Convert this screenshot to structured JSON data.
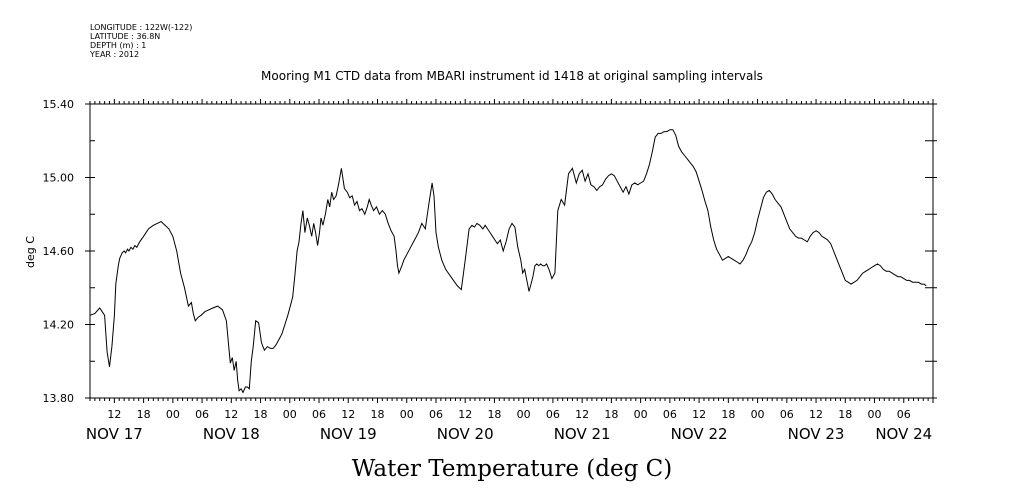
{
  "metadata": [
    "LONGITUDE : 122W(-122)",
    "LATITUDE : 36.8N",
    "DEPTH (m) : 1",
    "YEAR : 2012"
  ],
  "chart_data": {
    "type": "line",
    "title": "Mooring M1 CTD data from MBARI instrument id 1418 at original sampling intervals",
    "xlabel": "Water Temperature (deg C)",
    "ylabel": "deg C",
    "ylim": [
      13.8,
      15.4
    ],
    "yticks": [
      "13.80",
      "14.20",
      "14.60",
      "15.00",
      "15.40"
    ],
    "xlim_hours": [
      7,
      180
    ],
    "hour_ticks": [
      {
        "h": 12,
        "label": "12"
      },
      {
        "h": 18,
        "label": "18"
      },
      {
        "h": 24,
        "label": "00"
      },
      {
        "h": 30,
        "label": "06"
      },
      {
        "h": 36,
        "label": "12"
      },
      {
        "h": 42,
        "label": "18"
      },
      {
        "h": 48,
        "label": "00"
      },
      {
        "h": 54,
        "label": "06"
      },
      {
        "h": 60,
        "label": "12"
      },
      {
        "h": 66,
        "label": "18"
      },
      {
        "h": 72,
        "label": "00"
      },
      {
        "h": 78,
        "label": "06"
      },
      {
        "h": 84,
        "label": "12"
      },
      {
        "h": 90,
        "label": "18"
      },
      {
        "h": 96,
        "label": "00"
      },
      {
        "h": 102,
        "label": "06"
      },
      {
        "h": 108,
        "label": "12"
      },
      {
        "h": 114,
        "label": "18"
      },
      {
        "h": 120,
        "label": "00"
      },
      {
        "h": 126,
        "label": "06"
      },
      {
        "h": 132,
        "label": "12"
      },
      {
        "h": 138,
        "label": "18"
      },
      {
        "h": 144,
        "label": "00"
      },
      {
        "h": 150,
        "label": "06"
      },
      {
        "h": 156,
        "label": "12"
      },
      {
        "h": 162,
        "label": "18"
      },
      {
        "h": 168,
        "label": "00"
      },
      {
        "h": 174,
        "label": "06"
      }
    ],
    "day_labels": [
      {
        "h": 12,
        "label": "NOV 17"
      },
      {
        "h": 36,
        "label": "NOV 18"
      },
      {
        "h": 60,
        "label": "NOV 19"
      },
      {
        "h": 84,
        "label": "NOV 20"
      },
      {
        "h": 108,
        "label": "NOV 21"
      },
      {
        "h": 132,
        "label": "NOV 22"
      },
      {
        "h": 156,
        "label": "NOV 23"
      },
      {
        "h": 174,
        "label": "NOV 24"
      }
    ],
    "series": [
      {
        "color": "#000000",
        "hours": [
          7.0,
          8.0,
          9.0,
          10.0,
          10.5,
          11.0,
          11.5,
          12.0,
          12.3,
          12.8,
          13.1,
          13.6,
          14.0,
          14.3,
          14.7,
          15.0,
          15.4,
          15.8,
          16.2,
          16.6,
          17.2,
          18.0,
          19.0,
          20.0,
          20.8,
          21.6,
          22.4,
          23.2,
          24.0,
          24.8,
          25.6,
          26.4,
          27.2,
          27.8,
          28.2,
          28.6,
          29.2,
          29.8,
          30.6,
          31.4,
          32.2,
          33.2,
          34.2,
          35.0,
          35.4,
          35.8,
          36.2,
          36.6,
          37.0,
          37.3,
          37.6,
          38.0,
          38.4,
          38.9,
          39.3,
          39.7,
          40.1,
          40.5,
          41.0,
          41.6,
          42.2,
          42.8,
          43.4,
          44.0,
          44.6,
          45.2,
          45.8,
          46.4,
          47.0,
          47.6,
          48.1,
          48.6,
          49.1,
          49.5,
          49.9,
          50.3,
          50.7,
          51.1,
          51.6,
          52.0,
          52.5,
          52.9,
          53.3,
          53.7,
          54.1,
          54.4,
          54.8,
          55.3,
          55.8,
          56.2,
          56.6,
          57.0,
          57.5,
          58.0,
          58.6,
          59.2,
          59.8,
          60.3,
          60.8,
          61.3,
          61.8,
          62.3,
          62.8,
          63.4,
          63.9,
          64.3,
          64.7,
          65.2,
          65.8,
          66.4,
          67.0,
          67.6,
          68.2,
          68.8,
          69.4,
          69.8,
          70.1,
          70.4,
          70.7,
          71.0,
          71.4,
          72.0,
          72.8,
          73.6,
          74.4,
          75.1,
          75.8,
          76.5,
          77.2,
          77.6,
          78.0,
          78.5,
          79.2,
          80.0,
          80.8,
          81.6,
          82.4,
          83.2,
          84.0,
          84.8,
          85.4,
          85.9,
          86.4,
          87.0,
          87.6,
          88.1,
          88.6,
          89.1,
          89.6,
          90.1,
          90.6,
          91.2,
          91.8,
          92.4,
          93.0,
          93.6,
          94.2,
          94.8,
          95.4,
          95.8,
          96.2,
          96.5,
          96.8,
          97.1,
          97.5,
          97.9,
          98.3,
          98.7,
          99.1,
          99.5,
          99.9,
          100.3,
          100.7,
          101.2,
          101.8,
          102.4,
          103.0,
          103.7,
          104.4,
          105.2,
          106.0,
          106.8,
          107.4,
          108.0,
          108.6,
          109.2,
          109.8,
          110.4,
          111.0,
          111.6,
          112.2,
          112.8,
          113.4,
          114.0,
          114.6,
          115.2,
          115.8,
          116.4,
          117.0,
          117.6,
          118.2,
          118.8,
          119.4,
          120.0,
          120.6,
          121.2,
          121.8,
          122.4,
          123.0,
          123.6,
          124.2,
          124.8,
          125.4,
          126.0,
          126.6,
          127.2,
          127.8,
          128.4,
          129.0,
          129.6,
          130.2,
          130.8,
          131.4,
          132.0,
          132.6,
          133.2,
          133.8,
          134.4,
          135.0,
          135.6,
          136.2,
          136.8,
          137.4,
          138.0,
          138.6,
          139.2,
          139.8,
          140.4,
          141.0,
          141.6,
          142.2,
          142.8,
          143.4,
          144.0,
          144.6,
          145.2,
          145.8,
          146.4,
          147.0,
          147.6,
          148.2,
          148.8,
          149.4,
          150.0,
          150.6,
          151.2,
          151.8,
          152.4,
          153.0,
          153.6,
          154.2,
          154.8,
          155.4,
          156.0,
          156.6,
          157.2,
          157.8,
          158.4,
          159.0,
          159.6,
          160.2,
          160.8,
          161.4,
          162.0,
          162.6,
          163.2,
          163.8,
          164.4,
          165.0,
          165.6,
          166.2,
          166.8,
          167.4,
          168.0,
          168.6,
          169.2,
          169.8,
          170.4,
          171.0,
          171.6,
          172.2,
          172.8,
          173.4,
          174.0,
          174.6,
          175.2,
          175.8,
          176.4,
          177.0,
          177.6,
          178.2,
          178.6
        ],
        "values": [
          14.25,
          14.26,
          14.29,
          14.25,
          14.05,
          13.97,
          14.08,
          14.25,
          14.42,
          14.52,
          14.56,
          14.59,
          14.6,
          14.59,
          14.61,
          14.6,
          14.62,
          14.61,
          14.63,
          14.62,
          14.65,
          14.68,
          14.72,
          14.74,
          14.75,
          14.76,
          14.74,
          14.72,
          14.68,
          14.6,
          14.48,
          14.4,
          14.3,
          14.32,
          14.26,
          14.22,
          14.24,
          14.25,
          14.27,
          14.28,
          14.29,
          14.3,
          14.28,
          14.22,
          14.1,
          13.99,
          14.02,
          13.95,
          14.0,
          13.9,
          13.84,
          13.85,
          13.83,
          13.86,
          13.86,
          13.85,
          14.0,
          14.08,
          14.22,
          14.21,
          14.1,
          14.06,
          14.08,
          14.07,
          14.07,
          14.09,
          14.12,
          14.15,
          14.2,
          14.25,
          14.3,
          14.35,
          14.48,
          14.6,
          14.65,
          14.75,
          14.82,
          14.7,
          14.78,
          14.74,
          14.68,
          14.75,
          14.7,
          14.63,
          14.7,
          14.78,
          14.74,
          14.8,
          14.88,
          14.84,
          14.92,
          14.88,
          14.9,
          14.96,
          15.05,
          14.94,
          14.92,
          14.89,
          14.9,
          14.85,
          14.87,
          14.82,
          14.83,
          14.8,
          14.84,
          14.88,
          14.85,
          14.82,
          14.84,
          14.8,
          14.82,
          14.8,
          14.75,
          14.71,
          14.68,
          14.6,
          14.52,
          14.48,
          14.5,
          14.52,
          14.55,
          14.58,
          14.62,
          14.66,
          14.7,
          14.75,
          14.72,
          14.85,
          14.97,
          14.9,
          14.7,
          14.62,
          14.55,
          14.5,
          14.47,
          14.44,
          14.41,
          14.39,
          14.55,
          14.72,
          14.74,
          14.73,
          14.75,
          14.74,
          14.72,
          14.74,
          14.72,
          14.7,
          14.68,
          14.66,
          14.64,
          14.66,
          14.6,
          14.65,
          14.72,
          14.75,
          14.73,
          14.62,
          14.55,
          14.48,
          14.5,
          14.46,
          14.42,
          14.38,
          14.42,
          14.46,
          14.52,
          14.53,
          14.52,
          14.53,
          14.52,
          14.52,
          14.53,
          14.5,
          14.45,
          14.48,
          14.82,
          14.88,
          14.85,
          15.02,
          15.05,
          14.97,
          15.02,
          15.04,
          14.98,
          15.02,
          14.96,
          14.95,
          14.93,
          14.95,
          14.96,
          14.99,
          15.01,
          15.02,
          15.01,
          14.98,
          14.95,
          14.92,
          14.95,
          14.91,
          14.96,
          14.97,
          14.96,
          14.97,
          14.98,
          15.02,
          15.07,
          15.14,
          15.22,
          15.24,
          15.24,
          15.25,
          15.25,
          15.26,
          15.26,
          15.23,
          15.17,
          15.14,
          15.12,
          15.1,
          15.08,
          15.06,
          15.03,
          14.98,
          14.93,
          14.87,
          14.82,
          14.73,
          14.66,
          14.61,
          14.58,
          14.55,
          14.56,
          14.57,
          14.56,
          14.55,
          14.54,
          14.53,
          14.55,
          14.58,
          14.62,
          14.65,
          14.7,
          14.77,
          14.83,
          14.89,
          14.92,
          14.93,
          14.91,
          14.88,
          14.86,
          14.84,
          14.8,
          14.76,
          14.72,
          14.7,
          14.68,
          14.67,
          14.67,
          14.66,
          14.65,
          14.68,
          14.7,
          14.71,
          14.7,
          14.68,
          14.67,
          14.66,
          14.64,
          14.6,
          14.56,
          14.52,
          14.48,
          14.44,
          14.43,
          14.42,
          14.43,
          14.44,
          14.46,
          14.48,
          14.49,
          14.5,
          14.51,
          14.52,
          14.53,
          14.52,
          14.5,
          14.49,
          14.49,
          14.48,
          14.47,
          14.46,
          14.46,
          14.45,
          14.44,
          14.44,
          14.43,
          14.43,
          14.43,
          14.42,
          14.42,
          14.41
        ]
      }
    ]
  }
}
